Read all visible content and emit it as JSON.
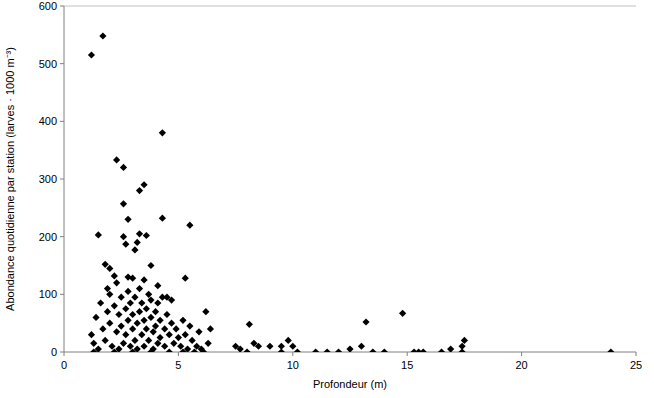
{
  "chart_data": {
    "type": "scatter",
    "x_label": "Profondeur (m)",
    "y_label": "Abondance quotidienne par station (larves · 1000 m⁻³)",
    "x": [
      1.2,
      1.7,
      1.5,
      1.8,
      2.0,
      2.2,
      2.3,
      2.6,
      2.6,
      2.8,
      2.6,
      2.7,
      3.1,
      3.2,
      3.3,
      3.5,
      3.3,
      3.6,
      3.8,
      4.3,
      4.3,
      5.5,
      5.3,
      1.9,
      2.3,
      2.8,
      3.0,
      3.5,
      4.1,
      4.5,
      4.7,
      1.2,
      1.3,
      1.4,
      1.5,
      1.6,
      1.7,
      1.8,
      1.9,
      2.0,
      2.0,
      2.1,
      2.2,
      2.3,
      2.4,
      2.4,
      2.5,
      2.5,
      2.6,
      2.7,
      2.7,
      2.8,
      2.8,
      2.9,
      2.9,
      3.0,
      3.0,
      3.1,
      3.1,
      3.2,
      3.2,
      3.3,
      3.3,
      3.4,
      3.4,
      3.5,
      3.5,
      3.6,
      3.6,
      3.7,
      3.7,
      3.8,
      3.8,
      3.9,
      3.9,
      4.0,
      4.0,
      4.1,
      4.1,
      4.2,
      4.2,
      4.3,
      4.4,
      4.4,
      4.5,
      4.6,
      4.7,
      4.8,
      4.9,
      5.0,
      5.1,
      5.2,
      5.3,
      5.4,
      5.5,
      5.6,
      5.8,
      5.9,
      6.0,
      6.2,
      6.3,
      6.4,
      6.1,
      5.7,
      7.5,
      7.7,
      8.1,
      8.3,
      8.5,
      9.0,
      9.5,
      9.8,
      10.0,
      10.2,
      11.0,
      11.5,
      12.0,
      12.5,
      13.0,
      13.2,
      13.5,
      14.0,
      14.8,
      15.3,
      15.5,
      15.7,
      16.5,
      16.9,
      17.4,
      17.5,
      17.4,
      23.9,
      8.0,
      9.5,
      1.3,
      2.2,
      3.0,
      3.8,
      4.6,
      5.2
    ],
    "values": [
      515,
      548,
      203,
      152,
      145,
      132,
      333,
      320,
      257,
      230,
      200,
      187,
      177,
      190,
      280,
      290,
      205,
      202,
      150,
      380,
      232,
      220,
      128,
      110,
      120,
      130,
      128,
      125,
      115,
      95,
      90,
      30,
      15,
      60,
      5,
      85,
      40,
      20,
      70,
      100,
      50,
      10,
      80,
      35,
      65,
      5,
      95,
      45,
      15,
      75,
      30,
      105,
      55,
      10,
      85,
      40,
      65,
      20,
      95,
      50,
      5,
      110,
      70,
      30,
      85,
      55,
      10,
      75,
      40,
      100,
      20,
      60,
      90,
      35,
      5,
      70,
      45,
      15,
      85,
      55,
      25,
      95,
      40,
      10,
      65,
      30,
      50,
      15,
      40,
      25,
      10,
      55,
      30,
      5,
      45,
      20,
      10,
      35,
      5,
      70,
      15,
      40,
      0,
      0,
      10,
      5,
      48,
      15,
      10,
      10,
      10,
      20,
      10,
      0,
      0,
      0,
      0,
      5,
      10,
      52,
      0,
      0,
      67,
      0,
      0,
      0,
      0,
      5,
      10,
      20,
      0,
      0,
      0,
      0,
      0,
      0,
      0,
      0,
      0,
      0
    ],
    "color": "#000000",
    "marker": "diamond",
    "xlim": [
      0,
      25
    ],
    "xticks": [
      0,
      5,
      10,
      15,
      20,
      25
    ],
    "ylim": [
      0,
      600
    ],
    "yticks": [
      0,
      100,
      200,
      300,
      400,
      500,
      600
    ],
    "grid": false
  }
}
